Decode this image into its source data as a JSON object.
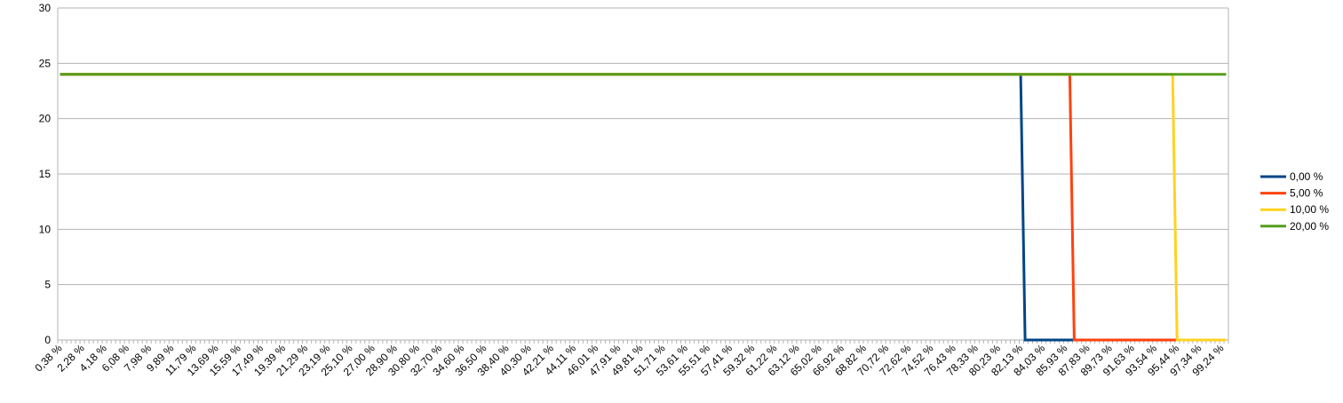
{
  "chart_data": {
    "type": "line",
    "title": "",
    "xlabel": "",
    "ylabel": "",
    "ylim": [
      0,
      30
    ],
    "yticks": [
      "0",
      "5",
      "10",
      "15",
      "20",
      "25",
      "30"
    ],
    "grid": true,
    "legend_position": "right",
    "x_labels": [
      "0,38 %",
      "2,28 %",
      "4,18 %",
      "6,08 %",
      "7,98 %",
      "9,89 %",
      "11,79 %",
      "13,69 %",
      "15,59 %",
      "17,49 %",
      "19,39 %",
      "21,29 %",
      "23,19 %",
      "25,10 %",
      "27,00 %",
      "28,90 %",
      "30,80 %",
      "32,70 %",
      "34,60 %",
      "36,50 %",
      "38,40 %",
      "40,30 %",
      "42,21 %",
      "44,11 %",
      "46,01 %",
      "47,91 %",
      "49,81 %",
      "51,71 %",
      "53,61 %",
      "55,51 %",
      "57,41 %",
      "59,32 %",
      "61,22 %",
      "63,12 %",
      "65,02 %",
      "66,92 %",
      "68,82 %",
      "70,72 %",
      "72,62 %",
      "74,52 %",
      "76,43 %",
      "78,33 %",
      "80,23 %",
      "82,13 %",
      "84,03 %",
      "85,93 %",
      "87,83 %",
      "89,73 %",
      "91,63 %",
      "93,54 %",
      "95,44 %",
      "97,34 %",
      "99,24 %"
    ],
    "series": [
      {
        "name": "0,00 %",
        "color": "#004586",
        "points": [
          [
            "0,38 %",
            24
          ],
          [
            "82,13 %",
            24
          ],
          [
            "82,51 %",
            0
          ],
          [
            "99,62 %",
            0
          ]
        ]
      },
      {
        "name": "5,00 %",
        "color": "#ff420e",
        "points": [
          [
            "0,38 %",
            24
          ],
          [
            "86,31 %",
            24
          ],
          [
            "86,69 %",
            0
          ],
          [
            "99,62 %",
            0
          ]
        ]
      },
      {
        "name": "10,00 %",
        "color": "#ffd320",
        "points": [
          [
            "0,38 %",
            24
          ],
          [
            "95,06 %",
            24
          ],
          [
            "95,44 %",
            0
          ],
          [
            "99,62 %",
            0
          ]
        ]
      },
      {
        "name": "20,00 %",
        "color": "#579d1c",
        "points": [
          [
            "0,38 %",
            24
          ],
          [
            "99,62 %",
            24
          ]
        ]
      }
    ]
  }
}
